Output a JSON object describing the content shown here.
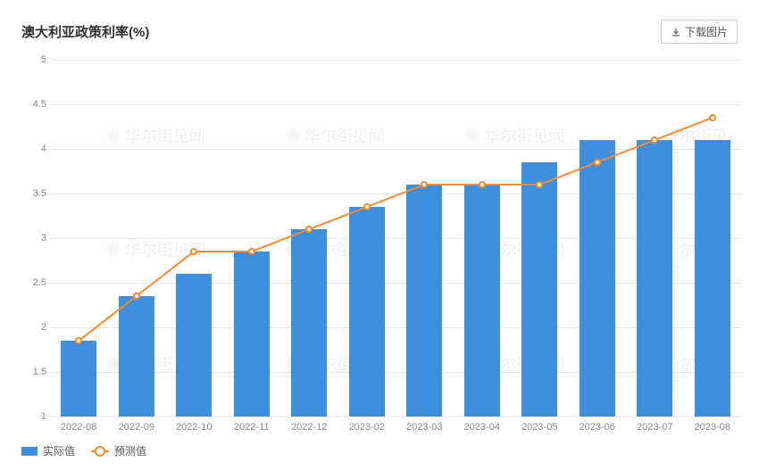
{
  "title": "澳大利亚政策利率(%)",
  "download_label": "下载图片",
  "chart": {
    "type": "bar+line",
    "categories": [
      "2022-08",
      "2022-09",
      "2022-10",
      "2022-11",
      "2022-12",
      "2023-02",
      "2023-03",
      "2023-04",
      "2023-05",
      "2023-06",
      "2023-07",
      "2023-08"
    ],
    "bar_values": [
      1.85,
      2.35,
      2.6,
      2.85,
      3.1,
      3.35,
      3.6,
      3.6,
      3.85,
      4.1,
      4.1,
      4.1
    ],
    "line_values": [
      1.85,
      2.35,
      2.85,
      2.85,
      3.1,
      3.35,
      3.6,
      3.6,
      3.6,
      3.85,
      4.1,
      4.35
    ],
    "ylim": [
      1,
      5
    ],
    "ytick_step": 0.5,
    "bar_color": "#3e8fde",
    "line_color": "#ff8a2a",
    "marker_fill": "#ffffff",
    "marker_stroke": "#ff8a2a",
    "grid_color": "#e6e6e6",
    "axis_label_color": "#888888",
    "background_color": "#ffffff",
    "bar_width_ratio": 0.62,
    "line_width": 2,
    "marker_radius": 4,
    "label_fontsize": 11,
    "title_fontsize": 15
  },
  "legend": {
    "bar_label": "实际值",
    "line_label": "预测值"
  },
  "watermark_text": "华尔街见闻"
}
